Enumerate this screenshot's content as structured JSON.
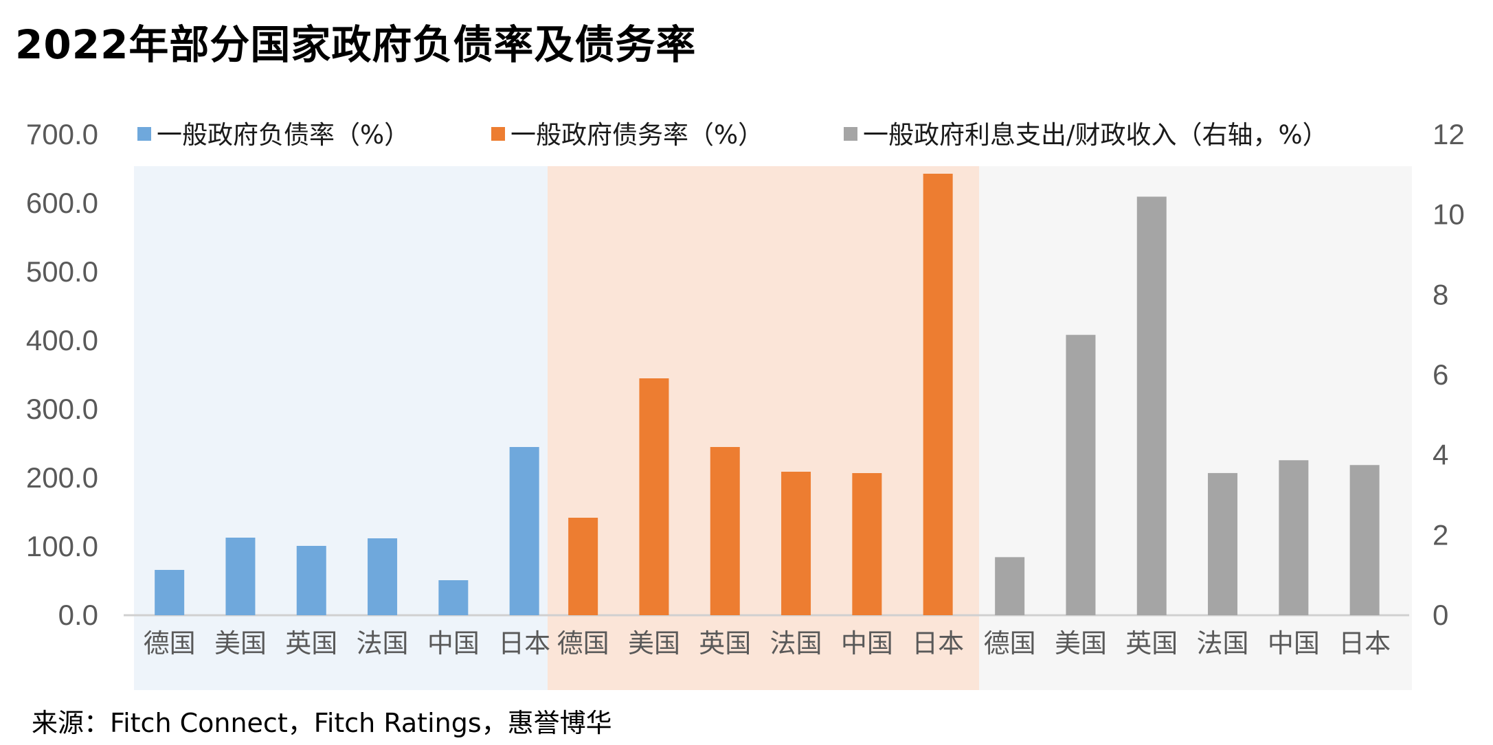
{
  "title": "2022年部分国家政府负债率及债务率",
  "source": "来源：Fitch Connect，Fitch Ratings，惠誉博华",
  "chart_data": {
    "type": "bar",
    "categories": [
      "德国",
      "美国",
      "英国",
      "法国",
      "中国",
      "日本"
    ],
    "series": [
      {
        "name": "一般政府负债率（%）",
        "axis": "left",
        "color": "#6FA8DC",
        "panel_color": "#EEF4FA",
        "values": [
          66,
          113,
          101,
          112,
          51,
          245
        ]
      },
      {
        "name": "一般政府债务率（%）",
        "axis": "left",
        "color": "#ED7D31",
        "panel_color": "#FBE5D8",
        "values": [
          142,
          345,
          245,
          209,
          207,
          643
        ]
      },
      {
        "name": "一般政府利息支出/财政收入（右轴，%）",
        "axis": "right",
        "color": "#A5A5A5",
        "panel_color": "#F6F6F6",
        "values": [
          1.45,
          7.0,
          10.45,
          3.55,
          3.87,
          3.75
        ]
      }
    ],
    "y_left": {
      "range": [
        0,
        700
      ],
      "ticks": [
        "0.0",
        "100.0",
        "200.0",
        "300.0",
        "400.0",
        "500.0",
        "600.0",
        "700.0"
      ]
    },
    "y_right": {
      "range": [
        0,
        12
      ],
      "ticks": [
        "0",
        "2",
        "4",
        "6",
        "8",
        "10",
        "12"
      ]
    },
    "legend_position": "top",
    "grid": false
  }
}
